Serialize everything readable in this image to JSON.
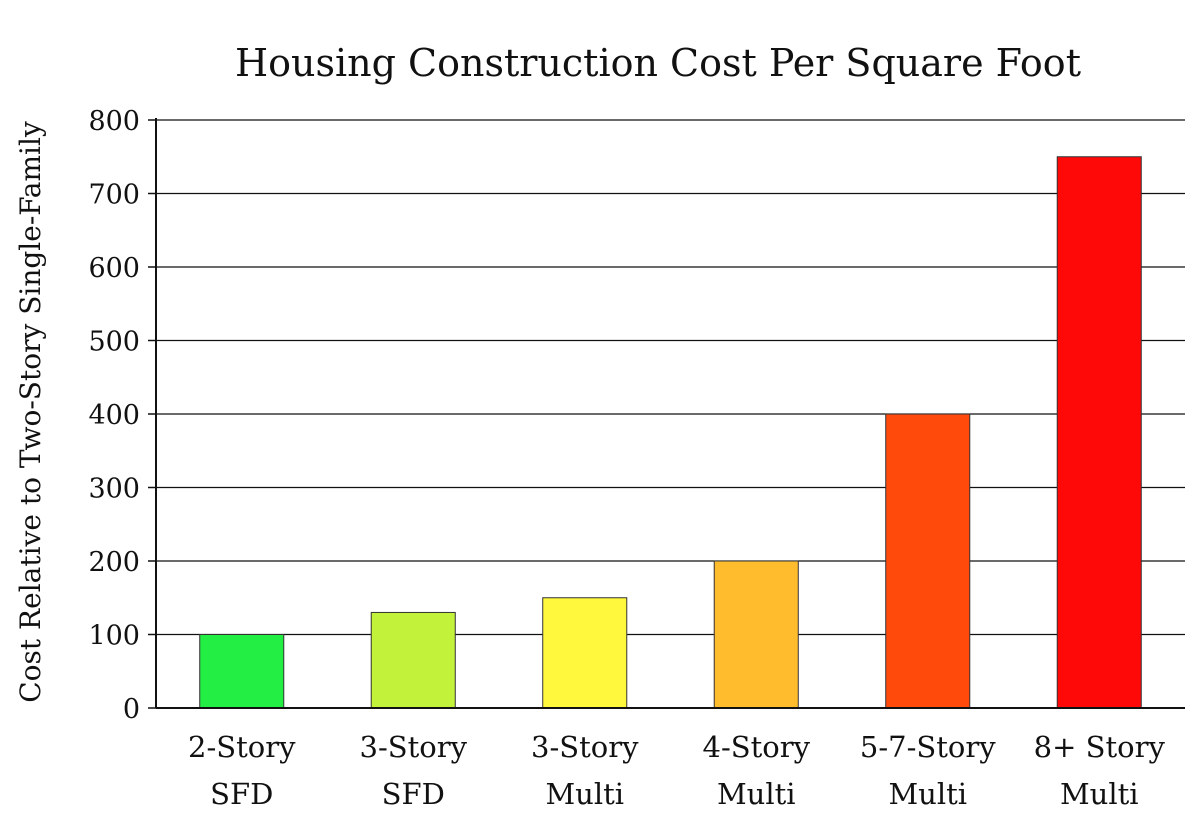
{
  "chart_data": {
    "type": "bar",
    "title": "Housing Construction Cost Per Square Foot",
    "xlabel": "",
    "ylabel": "Cost Relative to Two-Story Single-Family",
    "categories": [
      [
        "2-Story",
        "SFD"
      ],
      [
        "3-Story",
        "SFD"
      ],
      [
        "3-Story",
        "Multi"
      ],
      [
        "4-Story",
        "Multi"
      ],
      [
        "5-7-Story",
        "Multi"
      ],
      [
        "8+ Story",
        "Multi"
      ]
    ],
    "values": [
      100,
      130,
      150,
      200,
      400,
      750
    ],
    "colors": [
      "#22ee44",
      "#c3f23a",
      "#fff83c",
      "#ffbc2d",
      "#ff4a0c",
      "#ff0808"
    ],
    "ylim": [
      0,
      800
    ],
    "yticks": [
      0,
      100,
      200,
      300,
      400,
      500,
      600,
      700,
      800
    ],
    "grid": true,
    "legend": "none"
  }
}
